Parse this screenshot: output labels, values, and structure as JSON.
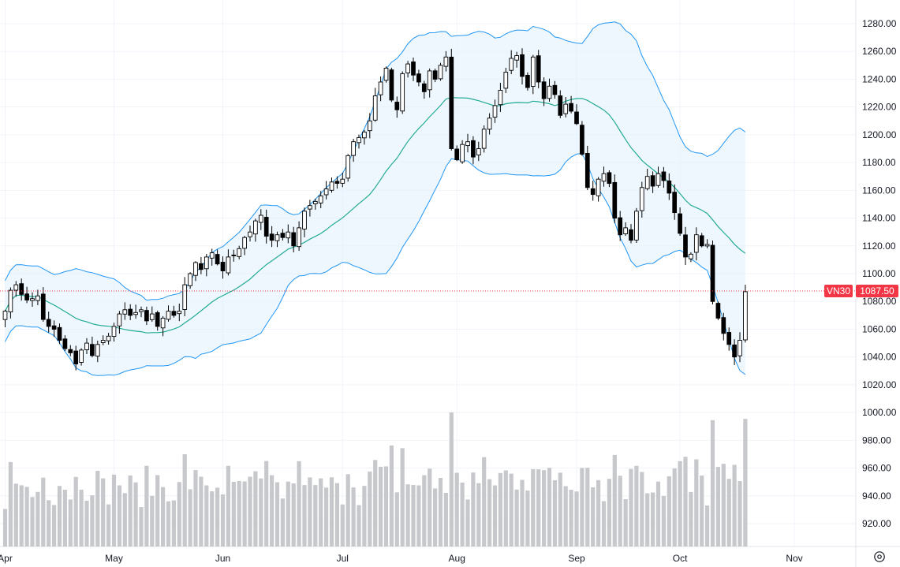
{
  "chart_data": {
    "type": "candlestick",
    "symbol": "VN30",
    "last_price_label": "1087.50",
    "y_axis": {
      "min": 910,
      "max": 1292,
      "ticks": [
        "920.00",
        "940.00",
        "960.00",
        "980.00",
        "1000.00",
        "1020.00",
        "1040.00",
        "1060.00",
        "1080.00",
        "1100.00",
        "1120.00",
        "1140.00",
        "1160.00",
        "1180.00",
        "1200.00",
        "1220.00",
        "1240.00",
        "1260.00",
        "1280.00"
      ]
    },
    "x_axis": {
      "labels": [
        {
          "label": "Apr",
          "index": 0
        },
        {
          "label": "May",
          "index": 20
        },
        {
          "label": "Jun",
          "index": 40
        },
        {
          "label": "Jul",
          "index": 62
        },
        {
          "label": "Aug",
          "index": 83
        },
        {
          "label": "Sep",
          "index": 105
        },
        {
          "label": "Oct",
          "index": 124
        },
        {
          "label": "Nov",
          "index": 145
        }
      ]
    },
    "colors": {
      "up_fill": "#ffffff",
      "up_border": "#000000",
      "down_fill": "#000000",
      "ma": "#22ab94",
      "band": "#2196f3",
      "band_fill": "#e3f2fd",
      "volume": "#c6c8cc",
      "tag": "#f23645",
      "grid": "#f0f3fa"
    },
    "closes": [
      1073,
      1088,
      1092,
      1085,
      1081,
      1082,
      1084,
      1067,
      1062,
      1060,
      1052,
      1046,
      1043,
      1035,
      1045,
      1050,
      1041,
      1049,
      1052,
      1055,
      1062,
      1071,
      1074,
      1070,
      1072,
      1074,
      1066,
      1071,
      1062,
      1068,
      1073,
      1070,
      1073,
      1092,
      1100,
      1108,
      1103,
      1112,
      1115,
      1107,
      1102,
      1112,
      1113,
      1118,
      1126,
      1130,
      1138,
      1142,
      1127,
      1124,
      1128,
      1126,
      1130,
      1120,
      1133,
      1145,
      1149,
      1152,
      1156,
      1161,
      1166,
      1165,
      1168,
      1185,
      1195,
      1198,
      1202,
      1210,
      1228,
      1238,
      1248,
      1225,
      1218,
      1244,
      1251,
      1243,
      1238,
      1231,
      1246,
      1240,
      1250,
      1256,
      1190,
      1182,
      1193,
      1195,
      1184,
      1190,
      1204,
      1212,
      1221,
      1232,
      1245,
      1255,
      1257,
      1242,
      1234,
      1256,
      1238,
      1226,
      1235,
      1229,
      1214,
      1222,
      1217,
      1208,
      1186,
      1162,
      1157,
      1168,
      1172,
      1165,
      1140,
      1128,
      1133,
      1124,
      1145,
      1162,
      1170,
      1163,
      1172,
      1167,
      1158,
      1144,
      1129,
      1112,
      1114,
      1128,
      1120,
      1121,
      1080,
      1068,
      1057,
      1049,
      1040,
      1052,
      1087
    ]
  }
}
